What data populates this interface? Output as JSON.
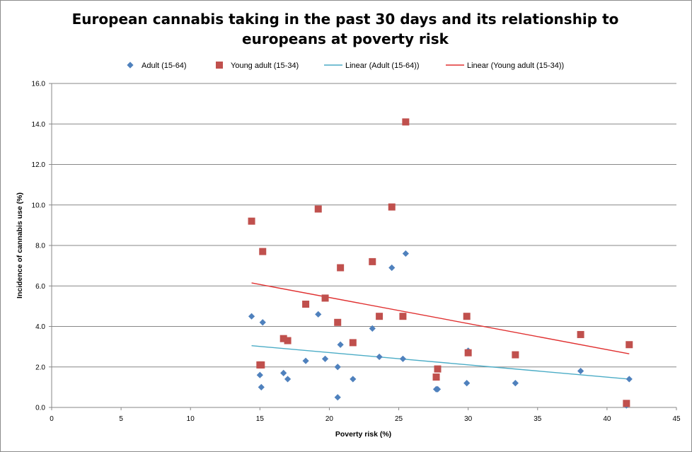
{
  "chart_data": {
    "type": "scatter",
    "title_line1": "European cannabis taking in the past 30 days and its relationship to",
    "title_line2": "europeans at poverty risk",
    "xlabel": "Poverty risk (%)",
    "ylabel": "Incidence of cannabis  use (%)",
    "xlim": [
      0,
      45
    ],
    "ylim": [
      0,
      16
    ],
    "x_ticks": [
      "0",
      "5",
      "10",
      "15",
      "20",
      "25",
      "30",
      "35",
      "40",
      "45"
    ],
    "y_ticks": [
      "0.0",
      "2.0",
      "4.0",
      "6.0",
      "8.0",
      "10.0",
      "12.0",
      "14.0",
      "16.0"
    ],
    "grid": "horizontal",
    "legend_position": "top",
    "series": [
      {
        "name": "Adult (15-64)",
        "marker": "diamond",
        "color": "#4f81bd",
        "points": [
          [
            14.4,
            4.5
          ],
          [
            15.0,
            1.6
          ],
          [
            15.1,
            1.0
          ],
          [
            15.2,
            4.2
          ],
          [
            16.7,
            1.7
          ],
          [
            17.0,
            1.4
          ],
          [
            18.3,
            2.3
          ],
          [
            19.2,
            4.6
          ],
          [
            19.7,
            2.4
          ],
          [
            20.6,
            2.0
          ],
          [
            20.6,
            0.5
          ],
          [
            20.8,
            3.1
          ],
          [
            21.7,
            1.4
          ],
          [
            23.1,
            3.9
          ],
          [
            23.6,
            2.5
          ],
          [
            24.5,
            6.9
          ],
          [
            25.3,
            2.4
          ],
          [
            25.5,
            7.6
          ],
          [
            27.7,
            0.9
          ],
          [
            27.8,
            0.9
          ],
          [
            29.9,
            1.2
          ],
          [
            30.0,
            2.8
          ],
          [
            33.4,
            1.2
          ],
          [
            38.1,
            1.8
          ],
          [
            41.4,
            0.1
          ],
          [
            41.6,
            1.4
          ]
        ]
      },
      {
        "name": "Young adult (15-34)",
        "marker": "square",
        "color": "#c0504d",
        "points": [
          [
            14.4,
            9.2
          ],
          [
            15.0,
            2.1
          ],
          [
            15.1,
            2.1
          ],
          [
            15.2,
            7.7
          ],
          [
            16.7,
            3.4
          ],
          [
            17.0,
            3.3
          ],
          [
            18.3,
            5.1
          ],
          [
            19.2,
            9.8
          ],
          [
            19.7,
            5.4
          ],
          [
            20.6,
            4.2
          ],
          [
            20.8,
            6.9
          ],
          [
            21.7,
            3.2
          ],
          [
            23.1,
            7.2
          ],
          [
            23.6,
            4.5
          ],
          [
            24.5,
            9.9
          ],
          [
            25.3,
            4.5
          ],
          [
            25.5,
            14.1
          ],
          [
            27.7,
            1.5
          ],
          [
            27.8,
            1.9
          ],
          [
            29.9,
            4.5
          ],
          [
            30.0,
            2.7
          ],
          [
            33.4,
            2.6
          ],
          [
            38.1,
            3.6
          ],
          [
            41.4,
            0.2
          ],
          [
            41.6,
            3.1
          ]
        ]
      },
      {
        "name": "Linear (Adult (15-64))",
        "type": "trendline",
        "color": "#4bacc6",
        "points": [
          [
            14.4,
            3.05
          ],
          [
            41.6,
            1.4
          ]
        ]
      },
      {
        "name": "Linear (Young adult (15-34))",
        "type": "trendline",
        "color": "#e03030",
        "points": [
          [
            14.4,
            6.15
          ],
          [
            41.6,
            2.65
          ]
        ]
      }
    ]
  }
}
